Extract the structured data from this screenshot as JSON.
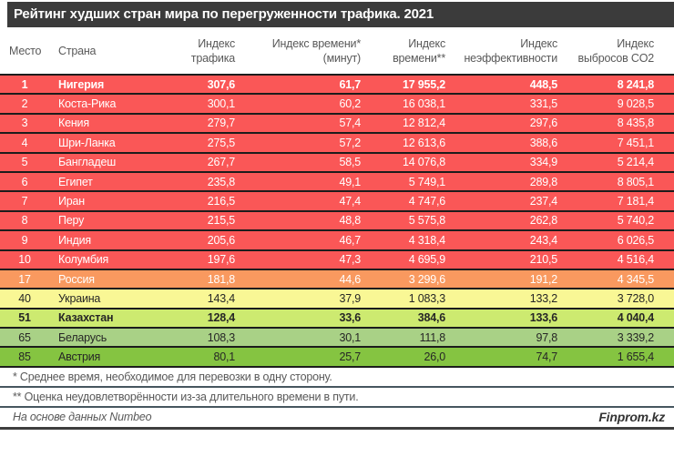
{
  "title": "Рейтинг худших стран мира по перегруженности трафика. 2021",
  "header": {
    "place": "Место",
    "country": "Страна",
    "cols": [
      {
        "key": "traffic-index",
        "line1": "Индекс",
        "line2": "трафика"
      },
      {
        "key": "time-index-minutes",
        "line1": "Индекс времени*",
        "line2": "(минут)"
      },
      {
        "key": "time-index",
        "line1": "Индекс",
        "line2": "времени**"
      },
      {
        "key": "inefficiency-index",
        "line1": "Индекс",
        "line2": "неэффективности"
      },
      {
        "key": "co2-index",
        "line1": "Индекс",
        "line2": "выбросов CO2"
      }
    ]
  },
  "rows": [
    {
      "place": "1",
      "country": "Нигерия",
      "traffic": "307,6",
      "time_min": "61,7",
      "time_index": "17 955,2",
      "inefficiency": "448,5",
      "co2": "8 241,8",
      "band": "red",
      "light": true,
      "bold": true
    },
    {
      "place": "2",
      "country": "Коста-Рика",
      "traffic": "300,1",
      "time_min": "60,2",
      "time_index": "16 038,1",
      "inefficiency": "331,5",
      "co2": "9 028,5",
      "band": "red",
      "light": true,
      "bold": false
    },
    {
      "place": "3",
      "country": "Кения",
      "traffic": "279,7",
      "time_min": "57,4",
      "time_index": "12 812,4",
      "inefficiency": "297,6",
      "co2": "8 435,8",
      "band": "red",
      "light": true,
      "bold": false
    },
    {
      "place": "4",
      "country": "Шри-Ланка",
      "traffic": "275,5",
      "time_min": "57,2",
      "time_index": "12 613,6",
      "inefficiency": "388,6",
      "co2": "7 451,1",
      "band": "red",
      "light": true,
      "bold": false
    },
    {
      "place": "5",
      "country": "Бангладеш",
      "traffic": "267,7",
      "time_min": "58,5",
      "time_index": "14 076,8",
      "inefficiency": "334,9",
      "co2": "5 214,4",
      "band": "red",
      "light": true,
      "bold": false
    },
    {
      "place": "6",
      "country": "Египет",
      "traffic": "235,8",
      "time_min": "49,1",
      "time_index": "5 749,1",
      "inefficiency": "289,8",
      "co2": "8 805,1",
      "band": "red",
      "light": true,
      "bold": false
    },
    {
      "place": "7",
      "country": "Иран",
      "traffic": "216,5",
      "time_min": "47,4",
      "time_index": "4 747,6",
      "inefficiency": "237,4",
      "co2": "7 181,4",
      "band": "red",
      "light": true,
      "bold": false
    },
    {
      "place": "8",
      "country": "Перу",
      "traffic": "215,5",
      "time_min": "48,8",
      "time_index": "5 575,8",
      "inefficiency": "262,8",
      "co2": "5 740,2",
      "band": "red",
      "light": true,
      "bold": false
    },
    {
      "place": "9",
      "country": "Индия",
      "traffic": "205,6",
      "time_min": "46,7",
      "time_index": "4 318,4",
      "inefficiency": "243,4",
      "co2": "6 026,5",
      "band": "red",
      "light": true,
      "bold": false
    },
    {
      "place": "10",
      "country": "Колумбия",
      "traffic": "197,6",
      "time_min": "47,3",
      "time_index": "4 695,9",
      "inefficiency": "210,5",
      "co2": "4 516,4",
      "band": "red",
      "light": true,
      "bold": false
    },
    {
      "place": "17",
      "country": "Россия",
      "traffic": "181,8",
      "time_min": "44,6",
      "time_index": "3 299,6",
      "inefficiency": "191,2",
      "co2": "4 345,5",
      "band": "orange",
      "light": true,
      "bold": false
    },
    {
      "place": "40",
      "country": "Украина",
      "traffic": "143,4",
      "time_min": "37,9",
      "time_index": "1 083,3",
      "inefficiency": "133,2",
      "co2": "3 728,0",
      "band": "yellow",
      "light": false,
      "bold": false
    },
    {
      "place": "51",
      "country": "Казахстан",
      "traffic": "128,4",
      "time_min": "33,6",
      "time_index": "384,6",
      "inefficiency": "133,6",
      "co2": "4 040,4",
      "band": "yellowGreen",
      "light": false,
      "bold": true
    },
    {
      "place": "65",
      "country": "Беларусь",
      "traffic": "108,3",
      "time_min": "30,1",
      "time_index": "111,8",
      "inefficiency": "97,8",
      "co2": "3 339,2",
      "band": "lightGreen",
      "light": false,
      "bold": false
    },
    {
      "place": "85",
      "country": "Австрия",
      "traffic": "80,1",
      "time_min": "25,7",
      "time_index": "26,0",
      "inefficiency": "74,7",
      "co2": "1 655,4",
      "band": "green",
      "light": false,
      "bold": false
    }
  ],
  "footnotes": [
    "* Среднее время, необходимое для перевозки в одну сторону.",
    "** Оценка неудовлетворённости из-за длительного времени в пути."
  ],
  "source": "На основе данных Numbeo",
  "brand": "Finprom.kz",
  "colors": {
    "red": "#FA5757",
    "orange": "#F9995F",
    "yellow": "#F9F795",
    "yellowGreen": "#CDEA70",
    "lightGreen": "#A9D186",
    "green": "#85C441",
    "titleBar": "#3B3B3B",
    "headerText": "#595959",
    "separator": "#1C1C1C"
  },
  "chart_data": {
    "type": "table",
    "title": "Рейтинг худших стран мира по перегруженности трафика. 2021",
    "columns": [
      "Место",
      "Страна",
      "Индекс трафика",
      "Индекс времени* (минут)",
      "Индекс времени**",
      "Индекс неэффективности",
      "Индекс выбросов CO2"
    ],
    "rows": [
      [
        1,
        "Нигерия",
        307.6,
        61.7,
        17955.2,
        448.5,
        8241.8
      ],
      [
        2,
        "Коста-Рика",
        300.1,
        60.2,
        16038.1,
        331.5,
        9028.5
      ],
      [
        3,
        "Кения",
        279.7,
        57.4,
        12812.4,
        297.6,
        8435.8
      ],
      [
        4,
        "Шри-Ланка",
        275.5,
        57.2,
        12613.6,
        388.6,
        7451.1
      ],
      [
        5,
        "Бангладеш",
        267.7,
        58.5,
        14076.8,
        334.9,
        5214.4
      ],
      [
        6,
        "Египет",
        235.8,
        49.1,
        5749.1,
        289.8,
        8805.1
      ],
      [
        7,
        "Иран",
        216.5,
        47.4,
        4747.6,
        237.4,
        7181.4
      ],
      [
        8,
        "Перу",
        215.5,
        48.8,
        5575.8,
        262.8,
        5740.2
      ],
      [
        9,
        "Индия",
        205.6,
        46.7,
        4318.4,
        243.4,
        6026.5
      ],
      [
        10,
        "Колумбия",
        197.6,
        47.3,
        4695.9,
        210.5,
        4516.4
      ],
      [
        17,
        "Россия",
        181.8,
        44.6,
        3299.6,
        191.2,
        4345.5
      ],
      [
        40,
        "Украина",
        143.4,
        37.9,
        1083.3,
        133.2,
        3728.0
      ],
      [
        51,
        "Казахстан",
        128.4,
        33.6,
        384.6,
        133.6,
        4040.4
      ],
      [
        65,
        "Беларусь",
        108.3,
        30.1,
        111.8,
        97.8,
        3339.2
      ],
      [
        85,
        "Австрия",
        80.1,
        25.7,
        26.0,
        74.7,
        1655.4
      ]
    ],
    "notes": [
      "* Среднее время, необходимое для перевозки в одну сторону.",
      "** Оценка неудовлетворённости из-за длительного времени в пути."
    ],
    "source": "На основе данных Numbeo"
  }
}
